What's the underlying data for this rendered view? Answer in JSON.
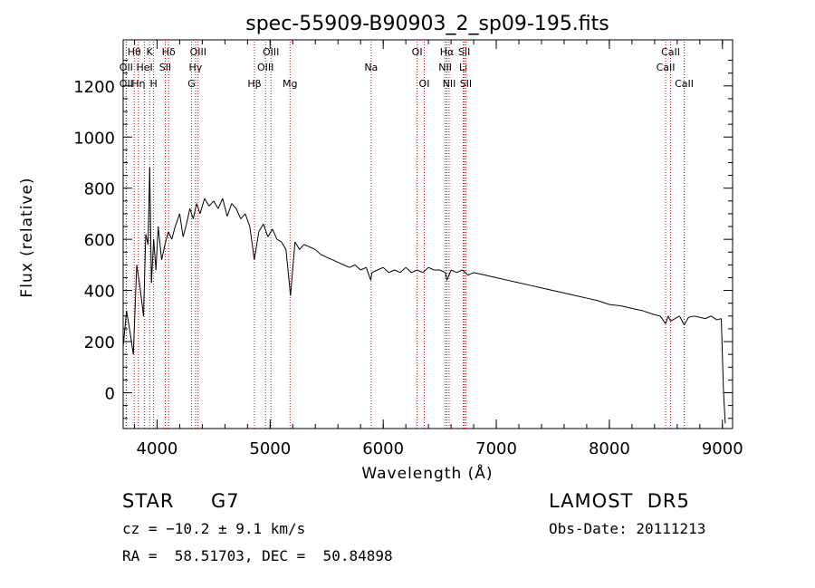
{
  "chart_data": {
    "type": "line",
    "title": "spec-55909-B90903_2_sp09-195.fits",
    "xlabel": "Wavelength (Å)",
    "ylabel": "Flux (relative)",
    "xlim": [
      3700,
      9090
    ],
    "ylim": [
      -140,
      1380
    ],
    "xticks": [
      4000,
      5000,
      6000,
      7000,
      8000,
      9000
    ],
    "yticks": [
      0,
      200,
      400,
      600,
      800,
      1000,
      1200
    ],
    "xtick_labels": [
      "4000",
      "5000",
      "6000",
      "7000",
      "8000",
      "9000"
    ],
    "ytick_labels": [
      "0",
      "200",
      "400",
      "600",
      "800",
      "1000",
      "1200"
    ],
    "grid": false,
    "line_color": "#000000",
    "marker_color": "#cc0000",
    "series": [
      {
        "x": [
          3700,
          3730,
          3760,
          3790,
          3820,
          3850,
          3880,
          3900,
          3920,
          3935,
          3950,
          3970,
          3990,
          4010,
          4040,
          4070,
          4100,
          4130,
          4160,
          4200,
          4230,
          4260,
          4290,
          4320,
          4350,
          4380,
          4420,
          4460,
          4500,
          4540,
          4580,
          4620,
          4660,
          4700,
          4740,
          4780,
          4820,
          4860,
          4900,
          4940,
          4980,
          5020,
          5060,
          5100,
          5140,
          5180,
          5220,
          5260,
          5300,
          5350,
          5400,
          5450,
          5500,
          5550,
          5600,
          5650,
          5700,
          5750,
          5800,
          5850,
          5890,
          5900,
          5950,
          6000,
          6050,
          6100,
          6150,
          6200,
          6250,
          6300,
          6350,
          6400,
          6450,
          6500,
          6550,
          6563,
          6600,
          6650,
          6700,
          6750,
          6800,
          6900,
          7000,
          7100,
          7200,
          7300,
          7400,
          7500,
          7600,
          7700,
          7800,
          7900,
          8000,
          8100,
          8200,
          8300,
          8400,
          8450,
          8498,
          8520,
          8542,
          8580,
          8620,
          8662,
          8700,
          8750,
          8800,
          8850,
          8900,
          8950,
          8990,
          9010,
          9025
        ],
        "y": [
          180,
          320,
          240,
          150,
          500,
          410,
          300,
          620,
          580,
          880,
          430,
          600,
          480,
          650,
          520,
          580,
          630,
          600,
          650,
          700,
          610,
          660,
          720,
          680,
          740,
          700,
          760,
          730,
          750,
          720,
          760,
          690,
          740,
          720,
          680,
          700,
          650,
          520,
          630,
          660,
          610,
          640,
          600,
          590,
          560,
          380,
          590,
          560,
          580,
          570,
          560,
          540,
          530,
          520,
          510,
          500,
          490,
          500,
          480,
          490,
          440,
          470,
          480,
          490,
          470,
          480,
          470,
          490,
          470,
          480,
          470,
          490,
          480,
          480,
          470,
          440,
          480,
          470,
          480,
          460,
          470,
          460,
          450,
          440,
          430,
          420,
          410,
          400,
          390,
          380,
          370,
          360,
          345,
          340,
          330,
          320,
          305,
          300,
          270,
          300,
          280,
          290,
          300,
          265,
          295,
          300,
          295,
          290,
          300,
          285,
          290,
          0,
          -120
        ]
      }
    ],
    "line_markers": [
      {
        "name": "OII",
        "x": 3727,
        "row": 2
      },
      {
        "name": "Hη",
        "x": 3835,
        "row": 2
      },
      {
        "name": "OII",
        "x": 3727,
        "row": 1
      },
      {
        "name": "HeI",
        "x": 3889,
        "row": 1
      },
      {
        "name": "Hθ",
        "x": 3798,
        "row": 0
      },
      {
        "name": "K",
        "x": 3934,
        "row": 0
      },
      {
        "name": "H",
        "x": 3969,
        "row": 2
      },
      {
        "name": "Hδ",
        "x": 4102,
        "row": 0
      },
      {
        "name": "SII",
        "x": 4072,
        "row": 1
      },
      {
        "name": "OIII",
        "x": 4363,
        "row": 0
      },
      {
        "name": "Hγ",
        "x": 4340,
        "row": 1
      },
      {
        "name": "G",
        "x": 4305,
        "row": 2
      },
      {
        "name": "Hβ",
        "x": 4861,
        "row": 2
      },
      {
        "name": "OIII",
        "x": 4959,
        "row": 1
      },
      {
        "name": "OIII",
        "x": 5007,
        "row": 0
      },
      {
        "name": "Mg",
        "x": 5176,
        "row": 2
      },
      {
        "name": "Na",
        "x": 5893,
        "row": 1
      },
      {
        "name": "OI",
        "x": 6300,
        "row": 0
      },
      {
        "name": "OI",
        "x": 6363,
        "row": 2
      },
      {
        "name": "Hα",
        "x": 6563,
        "row": 0
      },
      {
        "name": "NII",
        "x": 6548,
        "row": 1
      },
      {
        "name": "NII",
        "x": 6583,
        "row": 2
      },
      {
        "name": "SII",
        "x": 6717,
        "row": 0
      },
      {
        "name": "Li",
        "x": 6708,
        "row": 1
      },
      {
        "name": "SII",
        "x": 6731,
        "row": 2
      },
      {
        "name": "CaII",
        "x": 8542,
        "row": 0
      },
      {
        "name": "CaII",
        "x": 8498,
        "row": 1
      },
      {
        "name": "CaII",
        "x": 8662,
        "row": 2
      }
    ]
  },
  "info": {
    "class": "STAR",
    "subclass": "G7",
    "survey": "LAMOST  DR5",
    "cz": "cz = −10.2 ± 9.1 km/s",
    "obs_date": "Obs-Date: 20111213",
    "coords": "RA =  58.51703, DEC =  50.84898"
  }
}
